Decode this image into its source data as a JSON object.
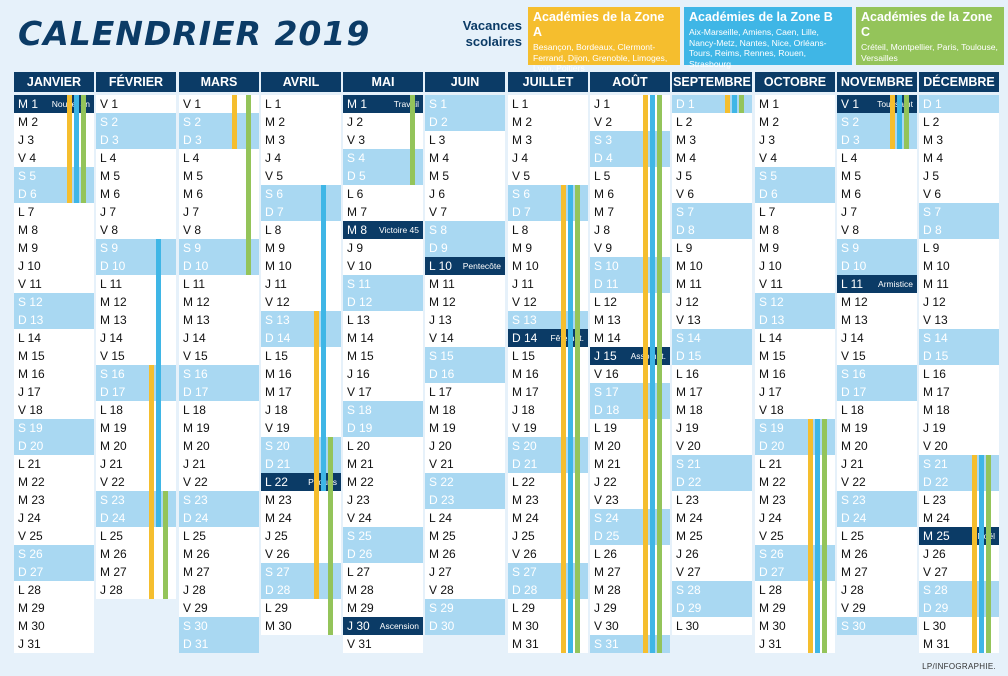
{
  "title": "CALENDRIER 2019",
  "vacances_label": "Vacances scolaires",
  "credit": "LP/INFOGRAPHIE.",
  "colors": {
    "zoneA": "#f5be2e",
    "zoneB": "#3fb6e6",
    "zoneC": "#94c45a",
    "navy": "#0b3b66",
    "weekend": "#a9d8f2"
  },
  "zones": [
    {
      "id": "A",
      "title": "Académies de la Zone A",
      "cities": "Besançon, Bordeaux, Clermont-Ferrand, Dijon, Grenoble, Limoges, Lyon, Poitiers"
    },
    {
      "id": "B",
      "title": "Académies de la Zone B",
      "cities": "Aix-Marseille, Amiens, Caen, Lille, Nancy-Metz, Nantes, Nice, Orléans-Tours, Reims, Rennes, Rouen, Strasbourg"
    },
    {
      "id": "C",
      "title": "Académies de la Zone C",
      "cities": "Créteil, Montpellier, Paris, Toulouse, Versailles"
    }
  ],
  "months": [
    {
      "name": "JANVIER",
      "first": 1,
      "days": 31,
      "holidays": {
        "1": "Nouvel an"
      },
      "bars": [
        {
          "z": "A",
          "from": 1,
          "to": 6
        },
        {
          "z": "B",
          "from": 1,
          "to": 6
        },
        {
          "z": "C",
          "from": 1,
          "to": 6
        }
      ]
    },
    {
      "name": "FÉVRIER",
      "first": 4,
      "days": 28,
      "holidays": {},
      "bars": [
        {
          "z": "B",
          "from": 9,
          "to": 24
        },
        {
          "z": "A",
          "from": 16,
          "to": 28
        },
        {
          "z": "C",
          "from": 23,
          "to": 28
        }
      ]
    },
    {
      "name": "MARS",
      "first": 4,
      "days": 31,
      "holidays": {},
      "bars": [
        {
          "z": "A",
          "from": 1,
          "to": 3
        },
        {
          "z": "C",
          "from": 1,
          "to": 10
        }
      ]
    },
    {
      "name": "AVRIL",
      "first": 0,
      "days": 30,
      "holidays": {
        "22": "Pâques"
      },
      "bars": [
        {
          "z": "B",
          "from": 6,
          "to": 22
        },
        {
          "z": "A",
          "from": 13,
          "to": 28
        },
        {
          "z": "C",
          "from": 20,
          "to": 30
        }
      ]
    },
    {
      "name": "MAI",
      "first": 2,
      "days": 31,
      "holidays": {
        "1": "Travail",
        "8": "Victoire 45",
        "30": "Ascension"
      },
      "bars": [
        {
          "z": "C",
          "from": 1,
          "to": 5
        }
      ]
    },
    {
      "name": "JUIN",
      "first": 5,
      "days": 30,
      "holidays": {
        "10": "Pentecôte"
      },
      "bars": []
    },
    {
      "name": "JUILLET",
      "first": 0,
      "days": 31,
      "holidays": {
        "14": "Fête nat."
      },
      "bars": [
        {
          "z": "A",
          "from": 6,
          "to": 31
        },
        {
          "z": "B",
          "from": 6,
          "to": 31
        },
        {
          "z": "C",
          "from": 6,
          "to": 31
        }
      ]
    },
    {
      "name": "AOÛT",
      "first": 3,
      "days": 31,
      "holidays": {
        "15": "Assompt."
      },
      "bars": [
        {
          "z": "A",
          "from": 1,
          "to": 31
        },
        {
          "z": "B",
          "from": 1,
          "to": 31
        },
        {
          "z": "C",
          "from": 1,
          "to": 31
        }
      ]
    },
    {
      "name": "SEPTEMBRE",
      "first": 6,
      "days": 30,
      "holidays": {},
      "bars": [
        {
          "z": "A",
          "from": 1,
          "to": 1
        },
        {
          "z": "B",
          "from": 1,
          "to": 1
        },
        {
          "z": "C",
          "from": 1,
          "to": 1
        }
      ]
    },
    {
      "name": "OCTOBRE",
      "first": 1,
      "days": 31,
      "holidays": {},
      "bars": [
        {
          "z": "A",
          "from": 19,
          "to": 31
        },
        {
          "z": "B",
          "from": 19,
          "to": 31
        },
        {
          "z": "C",
          "from": 19,
          "to": 31
        }
      ]
    },
    {
      "name": "NOVEMBRE",
      "first": 4,
      "days": 30,
      "holidays": {
        "1": "Toussaint",
        "11": "Armistice"
      },
      "bars": [
        {
          "z": "A",
          "from": 1,
          "to": 3
        },
        {
          "z": "B",
          "from": 1,
          "to": 3
        },
        {
          "z": "C",
          "from": 1,
          "to": 3
        }
      ]
    },
    {
      "name": "DÉCEMBRE",
      "first": 6,
      "days": 31,
      "holidays": {
        "25": "Noël"
      },
      "bars": [
        {
          "z": "A",
          "from": 21,
          "to": 31
        },
        {
          "z": "B",
          "from": 21,
          "to": 31
        },
        {
          "z": "C",
          "from": 21,
          "to": 31
        }
      ]
    }
  ],
  "weekday_letters": [
    "L",
    "M",
    "M",
    "J",
    "V",
    "S",
    "D"
  ]
}
